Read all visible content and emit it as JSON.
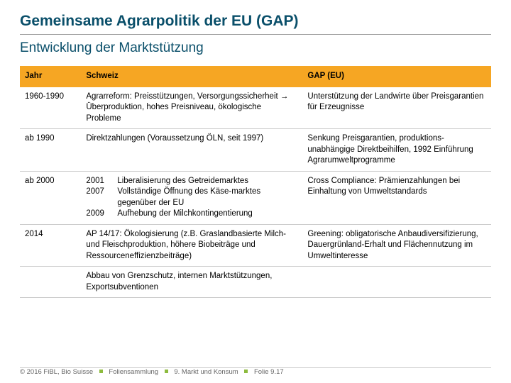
{
  "title": "Gemeinsame Agrarpolitik der EU (GAP)",
  "subtitle": "Entwicklung der Marktstützung",
  "columns": [
    "Jahr",
    "Schweiz",
    "GAP (EU)"
  ],
  "rows": [
    {
      "year": "1960-1990",
      "ch": "Agrarreform: Preisstützungen, Versorgungssicherheit → Überproduktion, hohes Preisniveau, ökologische Probleme",
      "eu": "Unterstützung der Landwirte über Preisgarantien für Erzeugnisse"
    },
    {
      "year": "ab 1990",
      "ch": "Direktzahlungen (Voraussetzung ÖLN, seit 1997)",
      "eu": "Senkung Preisgarantien, produktions-unabhängige Direktbeihilfen, 1992 Einführung Agrarumweltprogramme"
    },
    {
      "year": "ab 2000",
      "ch_sub": [
        {
          "y": "2001",
          "t": "Liberalisierung des Getreidemarktes"
        },
        {
          "y": "2007",
          "t": "Vollständige Öffnung des Käse-marktes gegenüber der EU"
        },
        {
          "y": "2009",
          "t": "Aufhebung der Milchkontingentierung"
        }
      ],
      "eu": "Cross Compliance: Prämienzahlungen bei Einhaltung von Umweltstandards"
    },
    {
      "year": "2014",
      "ch": "AP 14/17: Ökologisierung (z.B. Graslandbasierte Milch- und Fleischproduktion, höhere Biobeiträge und Ressourceneffizienzbeiträge)",
      "eu": "Greening: obligatorische Anbaudiversifizierung, Dauergrünland-Erhalt und Flächennutzung im Umweltinteresse"
    },
    {
      "year": "",
      "ch": "Abbau von Grenzschutz, internen Marktstützungen, Exportsubventionen",
      "eu": ""
    }
  ],
  "footer": {
    "copyright": "© 2016 FiBL, Bio Suisse",
    "part1": "Foliensammlung",
    "part2": "9. Markt und Konsum",
    "part3": "Folie 9.17"
  }
}
